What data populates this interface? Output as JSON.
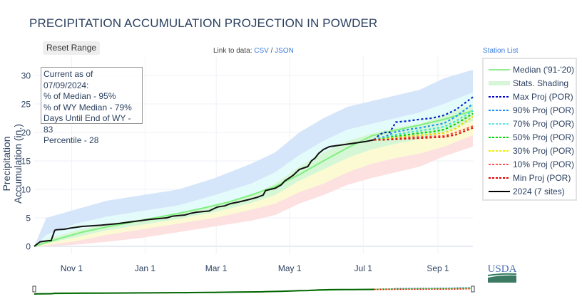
{
  "page": {
    "title": "PRECIPITATION ACCUMULATION PROJECTION IN POWDER",
    "reset_label": "Reset Range",
    "data_link_prefix": "Link to data:",
    "csv_label": "CSV",
    "separator": "/",
    "json_label": "JSON",
    "station_list_label": "Station List",
    "logo_text": "USDA"
  },
  "info_box": {
    "lines": [
      "Current as of 07/09/2024:",
      "% of Median - 95%",
      "% of WY Median - 79%",
      "Days Until End of WY - 83",
      "Percentile - 28"
    ]
  },
  "legend": [
    {
      "label": "Median ('91-'20)",
      "color": "#90ee90",
      "style": "solid"
    },
    {
      "label": "Stats. Shading",
      "color": "#d8f5d8",
      "style": "band"
    },
    {
      "label": "Max Proj (POR)",
      "color": "#0000cc",
      "style": "dot"
    },
    {
      "label": "90% Proj (POR)",
      "color": "#1e90ff",
      "style": "dot"
    },
    {
      "label": "70% Proj (POR)",
      "color": "#66e0e0",
      "style": "dot"
    },
    {
      "label": "50% Proj (POR)",
      "color": "#00dd00",
      "style": "dot"
    },
    {
      "label": "30% Proj (POR)",
      "color": "#eeee00",
      "style": "dot"
    },
    {
      "label": "10% Proj (POR)",
      "color": "#ff5555",
      "style": "dot"
    },
    {
      "label": "Min Proj (POR)",
      "color": "#dd0000",
      "style": "dot"
    },
    {
      "label": "2024 (7 sites)",
      "color": "#000000",
      "style": "solid"
    }
  ],
  "chart_data": {
    "type": "line",
    "title": "PRECIPITATION ACCUMULATION PROJECTION IN POWDER",
    "xlabel": "",
    "ylabel": "Precipitation Accumulation (in.)",
    "x_unit": "day of water year (Oct 1 = 0)",
    "xlim": [
      0,
      364
    ],
    "ylim": [
      -2,
      32
    ],
    "yticks": [
      0,
      5,
      10,
      15,
      20,
      25,
      30
    ],
    "xticks": [
      {
        "day": 31,
        "label": "Nov 1"
      },
      {
        "day": 92,
        "label": "Jan 1"
      },
      {
        "day": 151,
        "label": "Mar 1"
      },
      {
        "day": 212,
        "label": "May 1"
      },
      {
        "day": 273,
        "label": "Jul 1"
      },
      {
        "day": 335,
        "label": "Sep 1"
      }
    ],
    "grid": true,
    "legend_position": "right",
    "bands": [
      {
        "name": "max-to-90",
        "color": "#d6e6fa",
        "x": [
          0,
          10,
          35,
          60,
          90,
          120,
          150,
          180,
          200,
          220,
          240,
          260,
          280,
          300,
          320,
          340,
          364
        ],
        "upper": [
          0,
          5,
          6.5,
          8,
          9,
          10,
          12,
          14.5,
          16.5,
          20,
          22.5,
          24.5,
          25.5,
          26.5,
          27.5,
          29.5,
          31
        ],
        "lower": [
          0,
          2,
          4,
          5.2,
          6.2,
          7.2,
          9,
          11,
          13,
          16,
          18.5,
          20.5,
          21.5,
          22.5,
          23.5,
          25,
          27
        ]
      },
      {
        "name": "90-to-70",
        "color": "#e3fbfb",
        "x": [
          0,
          10,
          35,
          60,
          90,
          120,
          150,
          180,
          200,
          220,
          240,
          260,
          280,
          300,
          320,
          340,
          364
        ],
        "upper": [
          0,
          2,
          4,
          5.2,
          6.2,
          7.2,
          9,
          11,
          13,
          16,
          18.5,
          20.5,
          21.5,
          22.5,
          23.5,
          25,
          27
        ],
        "lower": [
          0,
          1.2,
          2.8,
          3.9,
          4.8,
          5.8,
          7.2,
          9,
          11,
          14,
          16.5,
          18.5,
          19.8,
          20.8,
          21.5,
          23,
          25
        ]
      },
      {
        "name": "70-to-30",
        "color": "#d6f7d6",
        "x": [
          0,
          10,
          35,
          60,
          90,
          120,
          150,
          180,
          200,
          220,
          240,
          260,
          280,
          300,
          320,
          340,
          364
        ],
        "upper": [
          0,
          1.2,
          2.8,
          3.9,
          4.8,
          5.8,
          7.2,
          9,
          11,
          14,
          16.5,
          18.5,
          19.8,
          20.8,
          21.5,
          23,
          25
        ],
        "lower": [
          0,
          0.5,
          1.6,
          2.8,
          3.8,
          4.8,
          6,
          7.6,
          9,
          11.5,
          13.5,
          15.5,
          17,
          18,
          18.8,
          20,
          22
        ]
      },
      {
        "name": "30-to-10",
        "color": "#fbfad3",
        "x": [
          0,
          10,
          35,
          60,
          90,
          120,
          150,
          180,
          200,
          220,
          240,
          260,
          280,
          300,
          320,
          340,
          364
        ],
        "upper": [
          0,
          0.5,
          1.6,
          2.8,
          3.8,
          4.8,
          6,
          7.6,
          9,
          11.5,
          13.5,
          15.5,
          17,
          18,
          18.8,
          20,
          22
        ],
        "lower": [
          0,
          0.2,
          0.9,
          2,
          3,
          4,
          5,
          6.4,
          7.5,
          9.5,
          11,
          13,
          14.5,
          15.5,
          16.3,
          17.5,
          19.5
        ]
      },
      {
        "name": "10-to-min",
        "color": "#fde0e0",
        "x": [
          0,
          10,
          35,
          60,
          90,
          120,
          150,
          180,
          200,
          220,
          240,
          260,
          280,
          300,
          320,
          340,
          364
        ],
        "upper": [
          0,
          0.2,
          0.9,
          2,
          3,
          4,
          5,
          6.4,
          7.5,
          9.5,
          11,
          13,
          14.5,
          15.5,
          16.3,
          17.5,
          19.5
        ],
        "lower": [
          0,
          0,
          0.3,
          0.8,
          1.5,
          2.5,
          3.5,
          4.5,
          5.5,
          7.5,
          9,
          10.8,
          12,
          13,
          14,
          15.8,
          17.5
        ]
      }
    ],
    "series": [
      {
        "name": "Median ('91-'20)",
        "color": "#7ff07f",
        "dash": "solid",
        "x": [
          0,
          20,
          40,
          60,
          80,
          100,
          120,
          140,
          160,
          180,
          200,
          220,
          240,
          260,
          280,
          300,
          320,
          340,
          364
        ],
        "y": [
          0,
          1.3,
          2.5,
          3.4,
          4.2,
          5,
          5.8,
          6.7,
          7.7,
          9,
          10.5,
          12.6,
          15,
          17.3,
          19.4,
          20.4,
          21.3,
          22.3,
          23.8
        ]
      },
      {
        "name": "2024 (7 sites)",
        "color": "#111111",
        "dash": "solid",
        "x": [
          0,
          3,
          5,
          12,
          14,
          17,
          18,
          25,
          30,
          40,
          55,
          70,
          80,
          88,
          95,
          105,
          110,
          115,
          125,
          130,
          135,
          145,
          150,
          152,
          158,
          163,
          170,
          178,
          185,
          190,
          192,
          200,
          205,
          208,
          213,
          215,
          220,
          227,
          230,
          233,
          236,
          240,
          245,
          255,
          265,
          275,
          282
        ],
        "y": [
          0,
          0.5,
          0.8,
          1,
          1,
          2.8,
          2.9,
          3,
          3.2,
          3.5,
          3.7,
          4,
          4.3,
          4.5,
          4.7,
          4.9,
          5,
          5.3,
          5.5,
          5.8,
          6,
          6.2,
          6.7,
          6.9,
          7.1,
          7.5,
          7.8,
          8.2,
          8.6,
          9,
          9.8,
          10.2,
          10.8,
          11.5,
          12.2,
          12.5,
          13.5,
          14,
          15,
          15.5,
          16.3,
          17,
          17.5,
          17.8,
          18.1,
          18.4,
          18.7
        ]
      },
      {
        "name": "Max Proj (POR)",
        "color": "#0022cc",
        "dash": "dot",
        "x": [
          282,
          286,
          290,
          295,
          300,
          310,
          320,
          330,
          340,
          350,
          364
        ],
        "y": [
          18.7,
          19.5,
          20,
          20,
          21.8,
          22,
          22.3,
          22.5,
          23,
          24,
          26.2
        ]
      },
      {
        "name": "90% Proj (POR)",
        "color": "#1e90ff",
        "dash": "dot",
        "x": [
          282,
          290,
          300,
          310,
          320,
          330,
          340,
          350,
          364
        ],
        "y": [
          18.7,
          19.2,
          20.1,
          20.5,
          20.8,
          21.2,
          21.6,
          22.8,
          25
        ]
      },
      {
        "name": "70% Proj (POR)",
        "color": "#40e0d0",
        "dash": "dot",
        "x": [
          282,
          290,
          300,
          310,
          320,
          330,
          340,
          350,
          364
        ],
        "y": [
          18.7,
          19,
          19.6,
          20,
          20.3,
          20.6,
          21,
          22,
          23.8
        ]
      },
      {
        "name": "50% Proj (POR)",
        "color": "#00cc00",
        "dash": "dot",
        "x": [
          282,
          290,
          300,
          310,
          320,
          330,
          340,
          350,
          364
        ],
        "y": [
          18.7,
          18.9,
          19.3,
          19.6,
          19.9,
          20.1,
          20.5,
          21.5,
          23.3
        ]
      },
      {
        "name": "30% Proj (POR)",
        "color": "#e6d800",
        "dash": "dot",
        "x": [
          282,
          290,
          300,
          310,
          320,
          330,
          340,
          350,
          364
        ],
        "y": [
          18.7,
          18.8,
          19.1,
          19.3,
          19.5,
          19.7,
          19.9,
          20.7,
          22.8
        ]
      },
      {
        "name": "10% Proj (POR)",
        "color": "#ff4d4d",
        "dash": "dot",
        "x": [
          282,
          290,
          300,
          310,
          320,
          330,
          340,
          350,
          364
        ],
        "y": [
          18.7,
          18.7,
          18.9,
          19.1,
          19.2,
          19.3,
          19.4,
          20,
          21.1
        ]
      },
      {
        "name": "Min Proj (POR)",
        "color": "#dd1100",
        "dash": "dot",
        "x": [
          282,
          290,
          300,
          310,
          320,
          330,
          340,
          350,
          364
        ],
        "y": [
          18.7,
          18.7,
          18.8,
          18.9,
          19,
          19.1,
          19.2,
          19.6,
          20.8
        ]
      }
    ]
  }
}
